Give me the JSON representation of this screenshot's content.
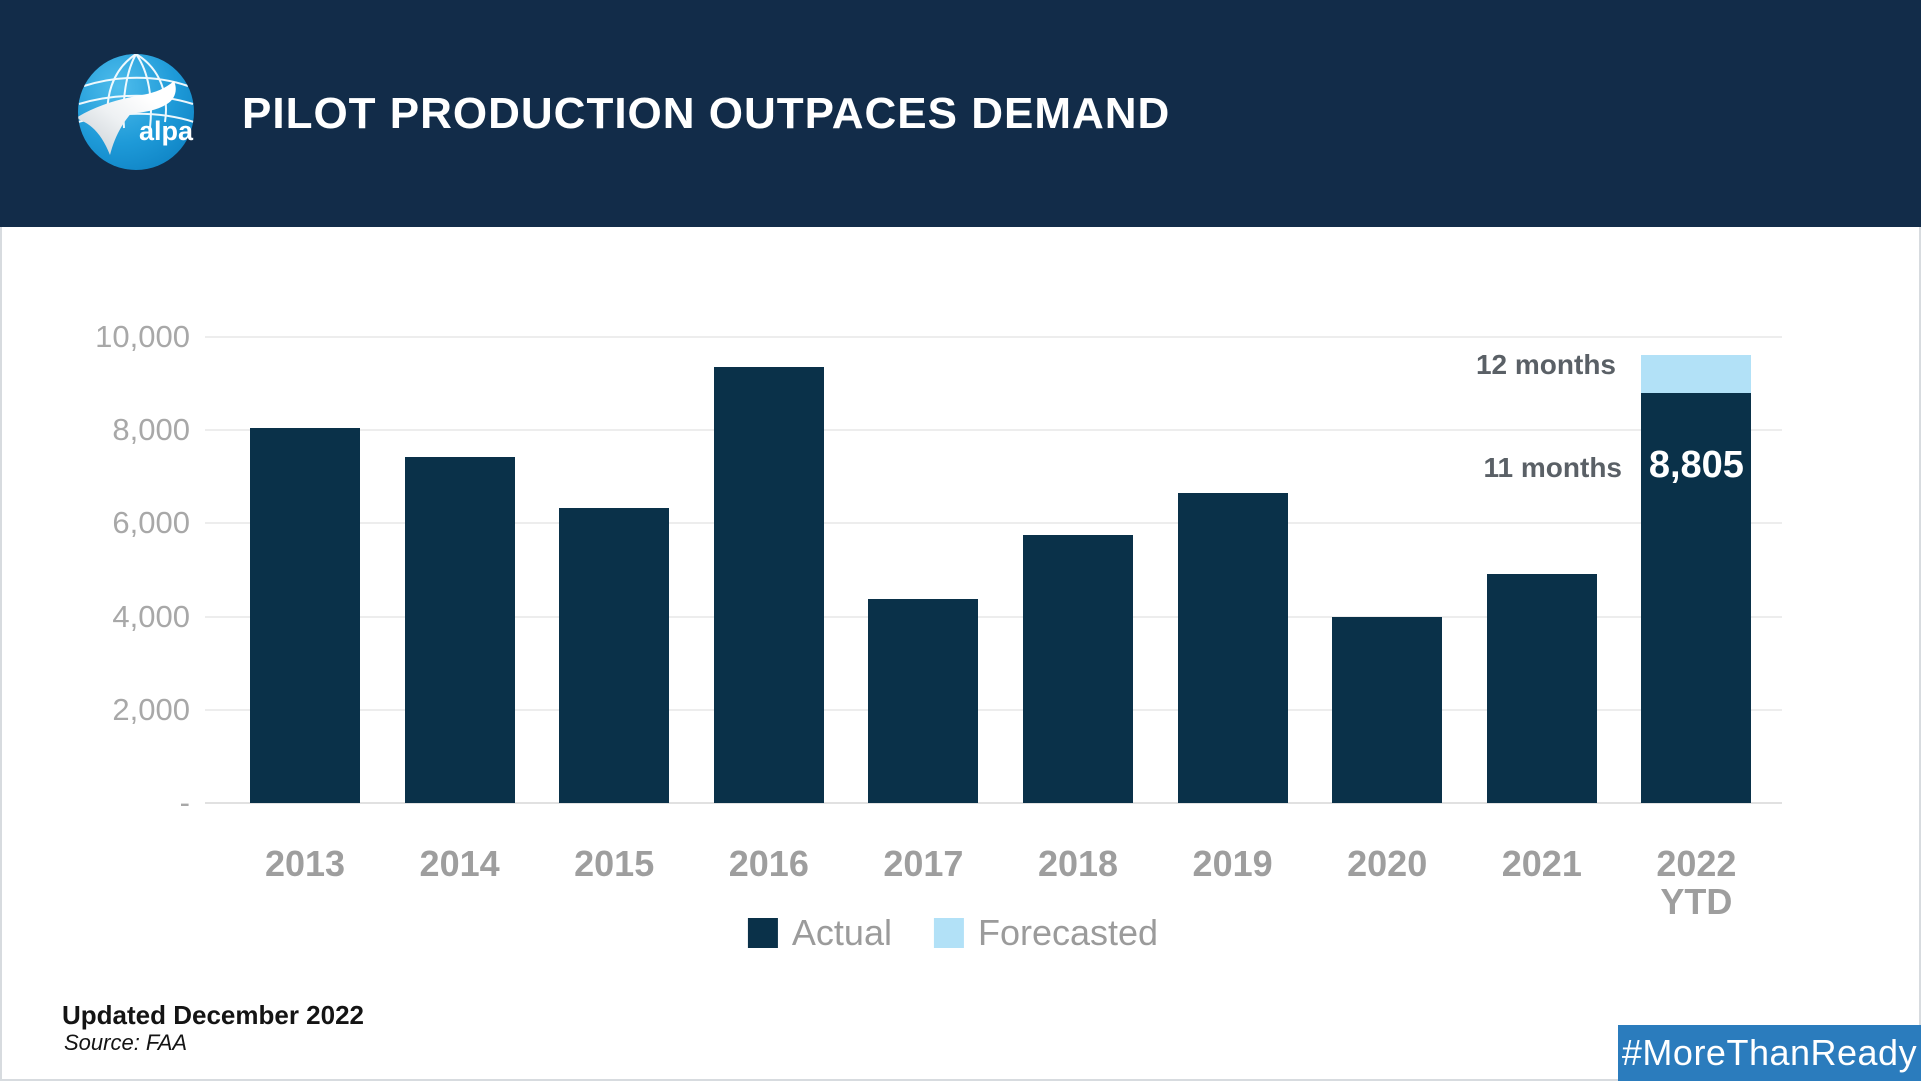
{
  "header": {
    "title": "PILOT PRODUCTION OUTPACES DEMAND",
    "logo_text": "alpa"
  },
  "chart_data": {
    "type": "bar",
    "stacked": true,
    "title": "PILOT PRODUCTION OUTPACES DEMAND",
    "categories": [
      {
        "label": "2013",
        "sublabel": ""
      },
      {
        "label": "2014",
        "sublabel": ""
      },
      {
        "label": "2015",
        "sublabel": ""
      },
      {
        "label": "2016",
        "sublabel": ""
      },
      {
        "label": "2017",
        "sublabel": ""
      },
      {
        "label": "2018",
        "sublabel": ""
      },
      {
        "label": "2019",
        "sublabel": ""
      },
      {
        "label": "2020",
        "sublabel": ""
      },
      {
        "label": "2021",
        "sublabel": ""
      },
      {
        "label": "2022",
        "sublabel": "YTD"
      }
    ],
    "series": [
      {
        "name": "Actual",
        "color": "#0a3149",
        "values": [
          8050,
          7430,
          6320,
          9360,
          4370,
          5750,
          6650,
          4000,
          4910,
          8805
        ]
      },
      {
        "name": "Forecasted",
        "color": "#b2e1f7",
        "values": [
          0,
          0,
          0,
          0,
          0,
          0,
          0,
          0,
          0,
          800
        ]
      }
    ],
    "ylim": [
      0,
      10000
    ],
    "ytick_interval": 2000,
    "yticks": [
      {
        "value": 10000,
        "label": "10,000"
      },
      {
        "value": 8000,
        "label": "8,000"
      },
      {
        "value": 6000,
        "label": "6,000"
      },
      {
        "value": 4000,
        "label": "4,000"
      },
      {
        "value": 2000,
        "label": "2,000"
      },
      {
        "value": 0,
        "label": "-"
      }
    ],
    "grid": true,
    "legend_position": "bottom",
    "annotations": [
      {
        "text": "12 months",
        "refers_to": "forecasted 12-month total"
      },
      {
        "text": "11 months",
        "refers_to": "actual 11-month value"
      }
    ],
    "bar_value_label": {
      "text": "8,805",
      "category": "2022",
      "series": "Actual"
    }
  },
  "legend": {
    "items": [
      {
        "label": "Actual",
        "color": "#0a3149"
      },
      {
        "label": "Forecasted",
        "color": "#b2e1f7"
      }
    ]
  },
  "footer": {
    "updated": "Updated December 2022",
    "source": "Source: FAA",
    "hashtag": "#MoreThanReady"
  },
  "colors": {
    "header_background": "#122c49",
    "bar_actual": "#0a3149",
    "bar_forecasted": "#b2e1f7",
    "banner_blue": "#2b7cbd",
    "axis_text": "#9e9e9e",
    "annotation_text": "#5a6066"
  }
}
